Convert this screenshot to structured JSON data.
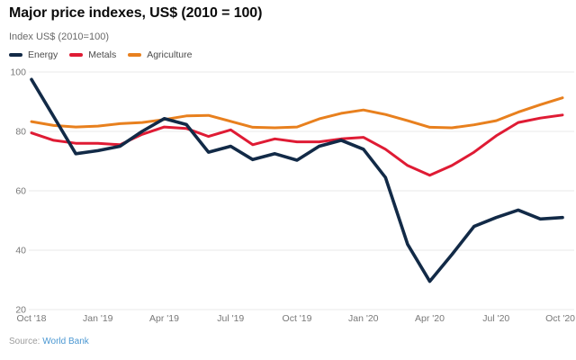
{
  "header": {
    "title": "Major price indexes, US$ (2010 = 100)",
    "subtitle": "Index US$ (2010=100)"
  },
  "legend": [
    {
      "label": "Energy",
      "color": "#122a47"
    },
    {
      "label": "Metals",
      "color": "#df1b34"
    },
    {
      "label": "Agriculture",
      "color": "#e8801e"
    }
  ],
  "source": {
    "prefix": "Source:",
    "link_text": "World Bank"
  },
  "colors": {
    "energy": "#122a47",
    "metals": "#df1b34",
    "agriculture": "#e8801e",
    "gridline": "#e8e8e8",
    "tick_label": "#787878",
    "source_link": "#4a97d2"
  },
  "chart_data": {
    "type": "line",
    "title": "Major price indexes, US$ (2010 = 100)",
    "ylabel": "Index US$ (2010=100)",
    "xlabel": "",
    "grid": true,
    "legend_position": "top",
    "ylim": [
      20,
      100
    ],
    "yticks": [
      20,
      40,
      60,
      80,
      100
    ],
    "x": [
      "Oct '18",
      "Nov '18",
      "Dec '18",
      "Jan '19",
      "Feb '19",
      "Mar '19",
      "Apr '19",
      "May '19",
      "Jun '19",
      "Jul '19",
      "Aug '19",
      "Sep '19",
      "Oct '19",
      "Nov '19",
      "Dec '19",
      "Jan '20",
      "Feb '20",
      "Mar '20",
      "Apr '20",
      "May '20",
      "Jun '20",
      "Jul '20",
      "Aug '20",
      "Sep '20",
      "Oct '20"
    ],
    "x_tick_indices": [
      0,
      3,
      6,
      9,
      12,
      15,
      18,
      21,
      24
    ],
    "x_tick_labels": [
      "Oct '18",
      "Jan '19",
      "Apr '19",
      "Jul '19",
      "Oct '19",
      "Jan '20",
      "Apr '20",
      "Jul '20",
      "Oct '20"
    ],
    "series": [
      {
        "name": "Energy",
        "color": "#122a47",
        "values": [
          97.5,
          85,
          72.5,
          73.5,
          75,
          80,
          84.3,
          82.3,
          73,
          75,
          70.5,
          72.5,
          70.3,
          75,
          77,
          74,
          64.5,
          42,
          29.5,
          38.5,
          48,
          51,
          53.5,
          50.5,
          51
        ]
      },
      {
        "name": "Metals",
        "color": "#df1b34",
        "values": [
          79.5,
          77,
          76,
          76,
          75.5,
          79,
          81.5,
          81,
          78.3,
          80.5,
          75.5,
          77.5,
          76.5,
          76.5,
          77.5,
          78,
          74,
          68.5,
          65.2,
          68.5,
          73,
          78.5,
          83,
          84.5,
          85.5
        ]
      },
      {
        "name": "Agriculture",
        "color": "#e8801e",
        "values": [
          83.3,
          82,
          81.5,
          81.8,
          82.6,
          83,
          84,
          85.2,
          85.4,
          83.4,
          81.4,
          81.2,
          81.5,
          84.2,
          86.1,
          87.2,
          85.7,
          83.6,
          81.4,
          81.2,
          82.2,
          83.6,
          86.5,
          89,
          91.3
        ]
      }
    ]
  }
}
